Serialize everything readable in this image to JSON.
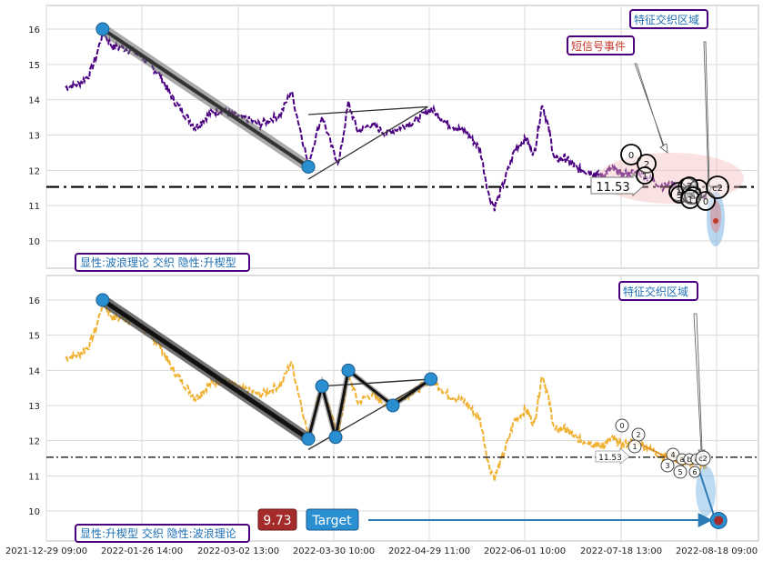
{
  "chart_data": [
    {
      "type": "line",
      "panel": "top",
      "ylim": [
        9.2,
        16.6
      ],
      "yticks": [
        "10",
        "11",
        "12",
        "13",
        "14",
        "15",
        "16"
      ],
      "line_color": "#4b0082",
      "reference_line": {
        "value": 11.53,
        "label": "11.53"
      },
      "wave_points": [
        {
          "x": "2022-01-15",
          "y": 16.0
        },
        {
          "x": "2022-03-23",
          "y": 12.1
        }
      ],
      "triangle_points": [
        {
          "x": "2022-03-23",
          "y": 11.75
        },
        {
          "x": "2022-03-23",
          "y": 13.58
        },
        {
          "x": "2022-04-29",
          "y": 13.8
        }
      ],
      "circle_labels": [
        "0",
        "2",
        "1",
        "3",
        "4",
        "5",
        "c",
        "b",
        "2",
        "a",
        "1",
        "0",
        "c2"
      ],
      "annotations": {
        "short_signal": "短信号事件",
        "feature_zone": "特征交织区域",
        "caption": "显性:波浪理论 交织 隐性:升楔型"
      },
      "colors": {
        "caption": "#1f6fb4",
        "short_signal": "#c0392b",
        "feature_zone": "#1f6fb4",
        "box_border": "#4b0082"
      }
    },
    {
      "type": "line",
      "panel": "bottom",
      "ylim": [
        9.2,
        16.6
      ],
      "yticks": [
        "10",
        "11",
        "12",
        "13",
        "14",
        "15",
        "16"
      ],
      "line_color": "#f0b030",
      "reference_line": {
        "value": 11.53,
        "label": "11.53"
      },
      "wave_points": [
        {
          "x": "2022-01-15",
          "y": 16.0
        },
        {
          "x": "2022-03-23",
          "y": 12.05
        }
      ],
      "wedge_points": [
        {
          "x": "2022-03-23",
          "y": 12.05
        },
        {
          "x": "2022-03-27",
          "y": 13.55
        },
        {
          "x": "2022-03-31",
          "y": 12.1
        },
        {
          "x": "2022-04-04",
          "y": 14.0
        },
        {
          "x": "2022-04-18",
          "y": 13.0
        },
        {
          "x": "2022-04-30",
          "y": 13.75
        }
      ],
      "circle_labels": [
        "0",
        "2",
        "1",
        "4",
        "3",
        "a",
        "5",
        "b",
        "6",
        "c",
        "c2"
      ],
      "target": {
        "value": 9.73,
        "value_label": "9.73",
        "label": "Target"
      },
      "annotations": {
        "feature_zone": "特征交织区域",
        "caption": "显性:升楔型 交织 隐性:波浪理论"
      },
      "colors": {
        "target_value_bg": "#a52a2a",
        "target_label_bg": "#2a8fd0",
        "arrow": "#2a7ab4"
      }
    }
  ],
  "x_axis": {
    "tick_labels": [
      "2021-12-29 09:00",
      "2022-01-26 14:00",
      "2022-03-02 13:00",
      "2022-03-30 10:00",
      "2022-04-29 11:00",
      "2022-06-01 10:00",
      "2022-07-18 13:00",
      "2022-08-18 09:00"
    ]
  }
}
